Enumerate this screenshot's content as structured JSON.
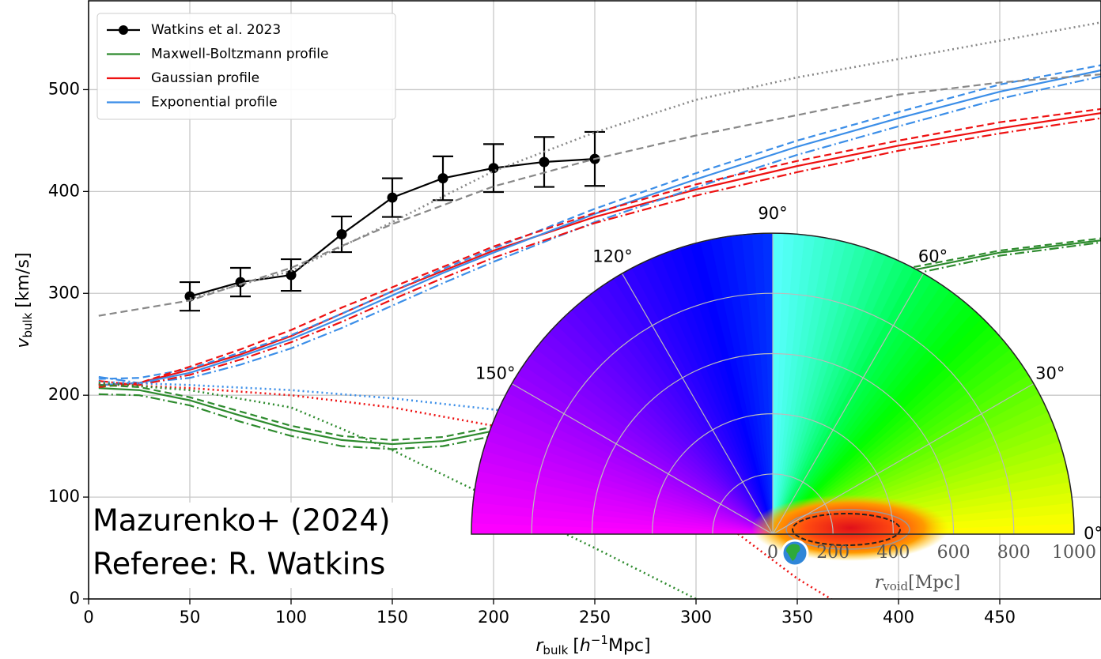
{
  "chart_data": {
    "type": "line",
    "xlim": [
      0,
      500
    ],
    "ylim": [
      0,
      588
    ],
    "xticks": [
      0,
      50,
      100,
      150,
      200,
      250,
      300,
      350,
      400,
      450
    ],
    "yticks": [
      0,
      100,
      200,
      300,
      400,
      500
    ],
    "grid": true,
    "legend_loc": "upper left",
    "xlabel": [
      "r",
      "bulk",
      "[",
      "h",
      "−1",
      "Mpc]"
    ],
    "ylabel": [
      "v",
      "bulk",
      "[km/s]"
    ],
    "annotations": [
      "Mazurenko+ (2024)",
      "Referee: R. Watkins"
    ],
    "series": [
      {
        "name": "Watkins et al. 2023",
        "color": "#000000",
        "style": "solid",
        "marker": true,
        "x": [
          50,
          75,
          100,
          125,
          150,
          175,
          200,
          225,
          250
        ],
        "values": [
          297,
          311,
          318,
          358,
          394,
          413,
          423,
          429,
          432
        ],
        "errors": [
          14,
          14,
          15.5,
          17.5,
          19,
          21.5,
          23.5,
          24.5,
          26.5
        ]
      },
      {
        "name": "Maxwell-Boltzmann profile",
        "color": "#2e8b2e",
        "style": "solid",
        "x": [
          5,
          25,
          50,
          75,
          100,
          125,
          150,
          175,
          200,
          250,
          300,
          350,
          400,
          450,
          500
        ],
        "values": [
          207,
          205,
          195,
          180,
          166,
          156,
          152,
          155,
          165,
          195,
          240,
          285,
          320,
          340,
          352
        ]
      },
      {
        "name": "Gaussian profile",
        "color": "#ee1111",
        "style": "solid",
        "x": [
          5,
          25,
          50,
          75,
          100,
          125,
          150,
          175,
          200,
          250,
          300,
          350,
          400,
          450,
          500
        ],
        "values": [
          210,
          212,
          225,
          240,
          258,
          280,
          302,
          322,
          342,
          375,
          402,
          425,
          445,
          462,
          477
        ]
      },
      {
        "name": "Exponential profile",
        "color": "#3b8ee8",
        "style": "solid",
        "x": [
          5,
          25,
          50,
          75,
          100,
          125,
          150,
          175,
          200,
          250,
          300,
          350,
          400,
          450,
          500
        ],
        "values": [
          210,
          212,
          222,
          238,
          255,
          276,
          298,
          320,
          340,
          378,
          412,
          444,
          472,
          498,
          519
        ]
      },
      {
        "color": "#3b8ee8",
        "style": "dashed",
        "x": [
          5,
          25,
          50,
          75,
          100,
          125,
          150,
          175,
          200,
          250,
          300,
          350,
          400,
          450,
          500
        ],
        "values": [
          216,
          217,
          226,
          242,
          259,
          280,
          302,
          324,
          344,
          383,
          418,
          450,
          478,
          505,
          524
        ]
      },
      {
        "color": "#3b8ee8",
        "style": "dashdot",
        "x": [
          5,
          25,
          50,
          75,
          100,
          125,
          150,
          175,
          200,
          250,
          300,
          350,
          400,
          450,
          500
        ],
        "values": [
          218,
          212,
          217,
          230,
          246,
          266,
          288,
          310,
          331,
          370,
          404,
          436,
          464,
          491,
          513
        ]
      },
      {
        "color": "#ee1111",
        "style": "dashed",
        "x": [
          5,
          25,
          50,
          75,
          100,
          125,
          150,
          175,
          200,
          250,
          300,
          350,
          400,
          450,
          500
        ],
        "values": [
          208,
          212,
          228,
          245,
          264,
          286,
          306,
          326,
          346,
          379,
          407,
          430,
          450,
          468,
          481
        ]
      },
      {
        "color": "#ee1111",
        "style": "dashdot",
        "x": [
          5,
          25,
          50,
          75,
          100,
          125,
          150,
          175,
          200,
          250,
          300,
          350,
          400,
          450,
          500
        ],
        "values": [
          214,
          210,
          220,
          235,
          252,
          272,
          294,
          315,
          335,
          369,
          396,
          419,
          440,
          457,
          472
        ]
      },
      {
        "color": "#2e8b2e",
        "style": "dashed",
        "x": [
          5,
          25,
          50,
          75,
          100,
          125,
          150,
          175,
          200,
          250,
          300,
          350,
          400,
          450,
          500
        ],
        "values": [
          210,
          208,
          198,
          184,
          170,
          160,
          156,
          159,
          169,
          199,
          244,
          289,
          323,
          342,
          354
        ]
      },
      {
        "color": "#2e8b2e",
        "style": "dashdot",
        "x": [
          5,
          25,
          50,
          75,
          100,
          125,
          150,
          175,
          200,
          250,
          300,
          350,
          400,
          450,
          500
        ],
        "values": [
          201,
          200,
          190,
          174,
          160,
          150,
          147,
          150,
          160,
          190,
          235,
          280,
          316,
          337,
          350
        ]
      },
      {
        "color": "#888888",
        "style": "dashed",
        "x": [
          5,
          50,
          100,
          150,
          200,
          250,
          300,
          350,
          400,
          450,
          500
        ],
        "values": [
          278,
          293,
          325,
          368,
          405,
          432,
          455,
          475,
          495,
          507,
          515
        ]
      },
      {
        "color": "#888888",
        "style": "dotted",
        "x": [
          50,
          100,
          150,
          200,
          250,
          300,
          350,
          400,
          450,
          500
        ],
        "values": [
          295,
          322,
          370,
          420,
          458,
          490,
          512,
          530,
          548,
          566
        ]
      },
      {
        "color": "#3b8ee8",
        "style": "dotted",
        "x": [
          5,
          50,
          100,
          150,
          200,
          250,
          300
        ],
        "values": [
          213,
          210,
          205,
          197,
          186,
          172,
          155
        ]
      },
      {
        "color": "#ee1111",
        "style": "dotted",
        "x": [
          5,
          50,
          100,
          150,
          200,
          250,
          300,
          350,
          400
        ],
        "values": [
          211,
          207,
          200,
          188,
          170,
          150,
          95,
          20,
          -40
        ]
      },
      {
        "color": "#2e8b2e",
        "style": "dotted",
        "x": [
          5,
          50,
          100,
          150,
          200,
          250,
          300
        ],
        "values": [
          212,
          205,
          188,
          146,
          98,
          50,
          0
        ]
      }
    ],
    "inset": {
      "type": "polar",
      "rlim": [
        0,
        1000
      ],
      "r_ticks": [
        0,
        200,
        400,
        600,
        800,
        1000
      ],
      "angle_ticks": [
        {
          "value": 0,
          "label": "0°"
        },
        {
          "value": 30,
          "label": "30°"
        },
        {
          "value": 60,
          "label": "60°"
        },
        {
          "value": 90,
          "label": "90°"
        },
        {
          "value": 120,
          "label": "120°"
        },
        {
          "value": 150,
          "label": "150°"
        }
      ],
      "rlabel": [
        "r",
        "void",
        "[Mpc]"
      ]
    }
  }
}
